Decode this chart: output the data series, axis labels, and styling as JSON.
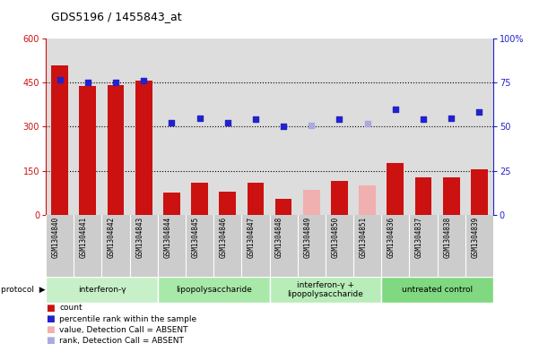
{
  "title": "GDS5196 / 1455843_at",
  "samples": [
    "GSM1304840",
    "GSM1304841",
    "GSM1304842",
    "GSM1304843",
    "GSM1304844",
    "GSM1304845",
    "GSM1304846",
    "GSM1304847",
    "GSM1304848",
    "GSM1304849",
    "GSM1304850",
    "GSM1304851",
    "GSM1304836",
    "GSM1304837",
    "GSM1304838",
    "GSM1304839"
  ],
  "counts": [
    510,
    440,
    442,
    456,
    75,
    110,
    80,
    110,
    55,
    null,
    115,
    null,
    175,
    128,
    128,
    155
  ],
  "counts_absent": [
    null,
    null,
    null,
    null,
    null,
    null,
    null,
    null,
    null,
    85,
    null,
    100,
    null,
    null,
    null,
    null
  ],
  "ranks_pct": [
    76.5,
    75.0,
    75.0,
    76.3,
    52.5,
    55.0,
    52.5,
    54.2,
    50.3,
    null,
    54.2,
    null,
    60.0,
    54.2,
    55.0,
    58.3
  ],
  "ranks_pct_absent": [
    null,
    null,
    null,
    null,
    null,
    null,
    null,
    null,
    null,
    50.8,
    null,
    52.0,
    null,
    null,
    null,
    null
  ],
  "groups": [
    {
      "label": "interferon-γ",
      "start": 0,
      "end": 4,
      "color": "#c8f0c8"
    },
    {
      "label": "lipopolysaccharide",
      "start": 4,
      "end": 8,
      "color": "#a8e8a8"
    },
    {
      "label": "interferon-γ +\nlipopolysaccharide",
      "start": 8,
      "end": 12,
      "color": "#b8ecb8"
    },
    {
      "label": "untreated control",
      "start": 12,
      "end": 16,
      "color": "#80d880"
    }
  ],
  "ylim_left": [
    0,
    600
  ],
  "ylim_right": [
    0,
    100
  ],
  "yticks_left": [
    0,
    150,
    300,
    450,
    600
  ],
  "yticks_right": [
    0,
    25,
    50,
    75,
    100
  ],
  "bar_color": "#cc1111",
  "bar_absent_color": "#f0b0b0",
  "rank_color": "#2222cc",
  "rank_absent_color": "#aaaadd",
  "plot_bg": "#dddddd",
  "grid_yticks": [
    150,
    300,
    450
  ],
  "legend": [
    {
      "label": "count",
      "color": "#cc1111"
    },
    {
      "label": "percentile rank within the sample",
      "color": "#2222cc"
    },
    {
      "label": "value, Detection Call = ABSENT",
      "color": "#f0b0b0"
    },
    {
      "label": "rank, Detection Call = ABSENT",
      "color": "#aaaadd"
    }
  ]
}
